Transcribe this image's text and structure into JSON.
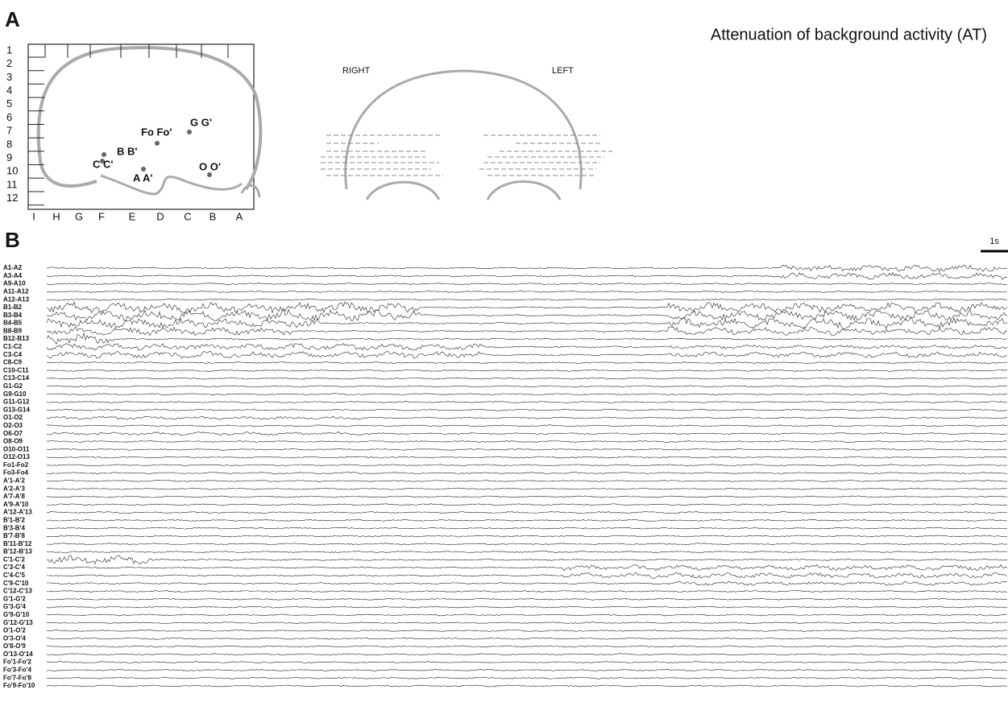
{
  "panel_a": {
    "label": "A",
    "title": "Attenuation of background activity (AT)",
    "rows": [
      "1",
      "2",
      "3",
      "4",
      "5",
      "6",
      "7",
      "8",
      "9",
      "10",
      "11",
      "12"
    ],
    "columns": [
      "I",
      "H",
      "G",
      "F",
      "E",
      "D",
      "C",
      "B",
      "A"
    ],
    "electrodes": [
      "Fo Fo'",
      "G G'",
      "B B'",
      "C C'",
      "A A'",
      "O O'"
    ],
    "coronal": {
      "right": "RIGHT",
      "left": "LEFT"
    }
  },
  "panel_b": {
    "label": "B",
    "scale": "1s",
    "channels": [
      "A1-A2",
      "A3-A4",
      "A9-A10",
      "A11-A12",
      "A12-A13",
      "B1-B2",
      "B3-B4",
      "B4-B5",
      "B8-B9",
      "B12-B13",
      "C1-C2",
      "C3-C4",
      "C8-C9",
      "C10-C11",
      "C13-C14",
      "G1-G2",
      "G9-G10",
      "G11-G12",
      "G13-G14",
      "O1-O2",
      "O2-O3",
      "O6-O7",
      "O8-O9",
      "O10-O11",
      "O12-O13",
      "Fo1-Fo2",
      "Fo3-Fo4",
      "A'1-A'2",
      "A'2-A'3",
      "A'7-A'8",
      "A'9-A'10",
      "A'12-A'13",
      "B'1-B'2",
      "B'3-B'4",
      "B'7-B'8",
      "B'11-B'12",
      "B'12-B'13",
      "C'1-C'2",
      "C'3-C'4",
      "C'4-C'5",
      "C'9-C'10",
      "C'12-C'13",
      "G'1-G'2",
      "G'3-G'4",
      "G'9-G'10",
      "G'12-G'13",
      "O'1-O'2",
      "O'3-O'4",
      "O'8-O'9",
      "O'13-O'14",
      "Fo'1-Fo'2",
      "Fo'3-Fo'4",
      "Fo'7-Fo'8",
      "Fo'9-Fo'10"
    ]
  }
}
